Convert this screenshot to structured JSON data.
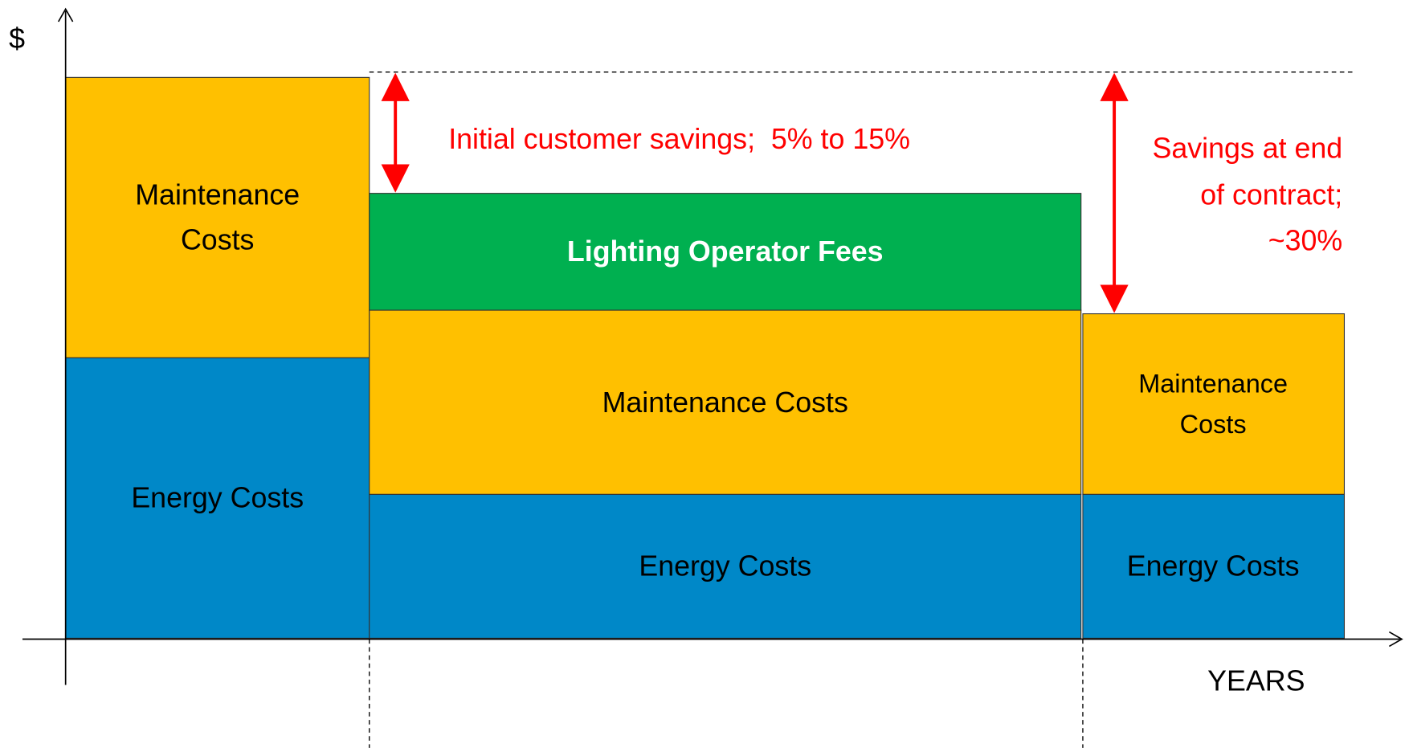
{
  "axes": {
    "y_label": "$",
    "x_label": "YEARS"
  },
  "blocks": {
    "before": {
      "maintenance": [
        "Maintenance",
        "Costs"
      ],
      "energy": "Energy Costs"
    },
    "contract": {
      "fees": "Lighting Operator Fees",
      "maintenance": "Maintenance Costs",
      "energy": "Energy Costs"
    },
    "after": {
      "maintenance": [
        "Maintenance",
        "Costs"
      ],
      "energy": "Energy Costs"
    }
  },
  "annotations": {
    "initial_savings": "Initial customer savings;  5% to 15%",
    "end_savings": [
      "Savings at end",
      "of contract;",
      "~30%"
    ]
  }
}
